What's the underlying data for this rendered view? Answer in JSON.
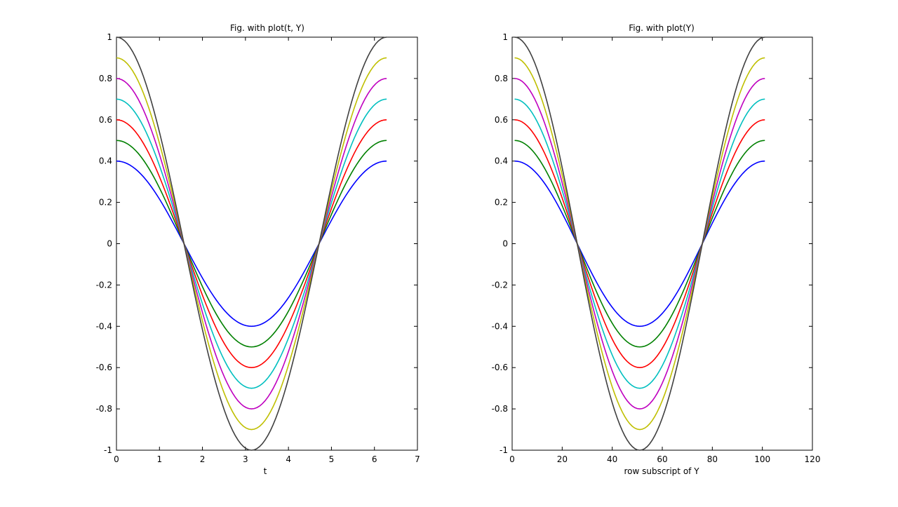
{
  "colors": [
    "#0000ff",
    "#008000",
    "#ff0000",
    "#00bfbf",
    "#bf00bf",
    "#bfbf00",
    "#404040"
  ],
  "chart_data": [
    {
      "type": "line",
      "title": "Fig. with plot(t, Y)",
      "xlabel": "t",
      "ylabel": "",
      "xlim": [
        0,
        7
      ],
      "ylim": [
        -1,
        1
      ],
      "xticks": [
        0,
        1,
        2,
        3,
        4,
        5,
        6,
        7
      ],
      "yticks": [
        -1,
        -0.8,
        -0.6,
        -0.4,
        -0.2,
        0,
        0.2,
        0.4,
        0.6,
        0.8,
        1
      ],
      "x": {
        "start": 0,
        "end": 6.2832,
        "count": 101
      },
      "function": "y = amplitude * cos(x)",
      "grid": false,
      "box": true,
      "series": [
        {
          "amplitude": 0.4,
          "color": "#0000ff"
        },
        {
          "amplitude": 0.5,
          "color": "#008000"
        },
        {
          "amplitude": 0.6,
          "color": "#ff0000"
        },
        {
          "amplitude": 0.7,
          "color": "#00bfbf"
        },
        {
          "amplitude": 0.8,
          "color": "#bf00bf"
        },
        {
          "amplitude": 0.9,
          "color": "#bfbf00"
        },
        {
          "amplitude": 1.0,
          "color": "#404040"
        }
      ]
    },
    {
      "type": "line",
      "title": "Fig. with plot(Y)",
      "xlabel": "row subscript of Y",
      "ylabel": "",
      "xlim": [
        0,
        120
      ],
      "ylim": [
        -1,
        1
      ],
      "xticks": [
        0,
        20,
        40,
        60,
        80,
        100,
        120
      ],
      "yticks": [
        -1,
        -0.8,
        -0.6,
        -0.4,
        -0.2,
        0,
        0.2,
        0.4,
        0.6,
        0.8,
        1
      ],
      "x": {
        "start": 1,
        "end": 101,
        "count": 101
      },
      "function": "y = amplitude * cos(2*pi*(x-1)/100)",
      "grid": false,
      "box": true,
      "series": [
        {
          "amplitude": 0.4,
          "color": "#0000ff"
        },
        {
          "amplitude": 0.5,
          "color": "#008000"
        },
        {
          "amplitude": 0.6,
          "color": "#ff0000"
        },
        {
          "amplitude": 0.7,
          "color": "#00bfbf"
        },
        {
          "amplitude": 0.8,
          "color": "#bf00bf"
        },
        {
          "amplitude": 0.9,
          "color": "#bfbf00"
        },
        {
          "amplitude": 1.0,
          "color": "#404040"
        }
      ]
    }
  ]
}
